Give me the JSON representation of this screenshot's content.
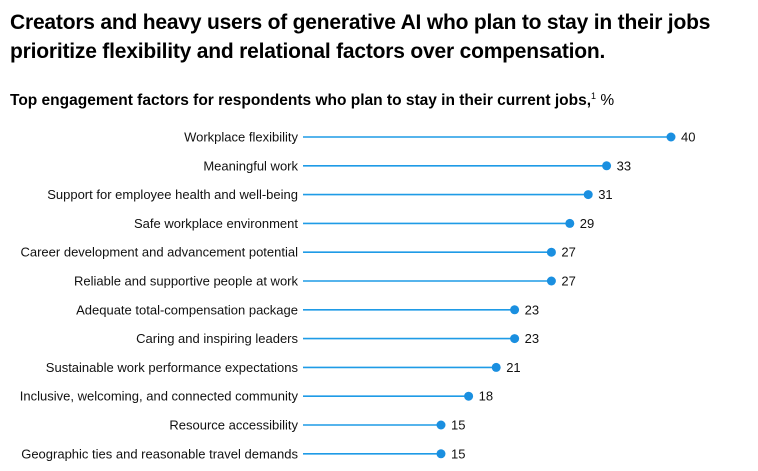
{
  "headline": "Creators and heavy users of generative AI who plan to stay in their jobs prioritize flexibility and relational factors over compensation.",
  "subtitle": {
    "text": "Top engagement factors for respondents who plan to stay in their current jobs,",
    "footnote": "1",
    "unit": "%"
  },
  "colors": {
    "line": "#1f9be6",
    "dot": "#1a8fe0"
  },
  "chart_data": {
    "type": "bar",
    "style": "lollipop",
    "orientation": "horizontal",
    "categories": [
      "Workplace flexibility",
      "Meaningful work",
      "Support for employee health and well-being",
      "Safe workplace environment",
      "Career development and advancement potential",
      "Reliable and supportive people at work",
      "Adequate total-compensation package",
      "Caring and inspiring leaders",
      "Sustainable work performance expectations",
      "Inclusive, welcoming, and connected community",
      "Resource accessibility",
      "Geographic ties and reasonable travel demands"
    ],
    "values": [
      40,
      33,
      31,
      29,
      27,
      27,
      23,
      23,
      21,
      18,
      15,
      15
    ],
    "xlim": [
      0,
      40
    ],
    "grid": false,
    "legend": "none"
  }
}
